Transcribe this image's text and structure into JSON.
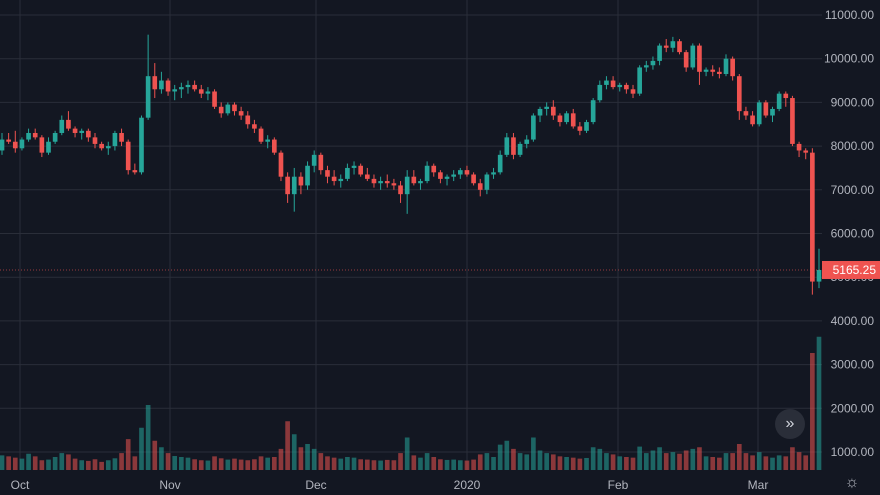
{
  "colors": {
    "background": "#131722",
    "grid": "#2a2e39",
    "up": "#26a69a",
    "down": "#ef5350",
    "label_bg": "#ef5350",
    "text": "#b2b5be"
  },
  "icons": {
    "scroll_button": "double-chevron-right-icon",
    "settings": "gear-icon"
  },
  "controls": {
    "scroll_glyph": "»",
    "settings_glyph": "☼"
  },
  "chart_data": {
    "type": "candlestick",
    "x_tick_labels": [
      "Oct",
      "Nov",
      "Dec",
      "2020",
      "Feb",
      "Mar"
    ],
    "y_tick_labels": [
      "11000.00",
      "10000.00",
      "9000.00",
      "8000.00",
      "7000.00",
      "6000.00",
      "5000.00",
      "4000.00",
      "3000.00",
      "2000.00",
      "1000.00"
    ],
    "ylim": [
      0,
      11300
    ],
    "last_price": 5165.25,
    "last_price_label": "5165.25",
    "grid": true,
    "candles": [
      [
        7900,
        8300,
        7800,
        8150,
        450
      ],
      [
        8150,
        8300,
        8050,
        8100,
        420
      ],
      [
        8100,
        8350,
        7850,
        7950,
        380
      ],
      [
        7950,
        8200,
        7900,
        8150,
        350
      ],
      [
        8150,
        8400,
        8100,
        8300,
        500
      ],
      [
        8300,
        8400,
        8150,
        8200,
        420
      ],
      [
        8200,
        8250,
        7750,
        7850,
        300
      ],
      [
        7850,
        8200,
        7800,
        8100,
        320
      ],
      [
        8100,
        8350,
        8050,
        8300,
        400
      ],
      [
        8300,
        8700,
        8250,
        8600,
        520
      ],
      [
        8600,
        8800,
        8350,
        8400,
        480
      ],
      [
        8400,
        8450,
        8200,
        8300,
        350
      ],
      [
        8300,
        8400,
        8150,
        8350,
        300
      ],
      [
        8350,
        8400,
        8100,
        8200,
        280
      ],
      [
        8200,
        8300,
        7950,
        8050,
        330
      ],
      [
        8050,
        8100,
        7900,
        7950,
        250
      ],
      [
        7950,
        8100,
        7800,
        8000,
        300
      ],
      [
        8000,
        8350,
        7900,
        8300,
        360
      ],
      [
        8300,
        8400,
        8000,
        8100,
        520
      ],
      [
        8100,
        8150,
        7350,
        7450,
        950
      ],
      [
        7450,
        7600,
        7350,
        7400,
        420
      ],
      [
        7400,
        8700,
        7350,
        8650,
        1300
      ],
      [
        8650,
        10550,
        8600,
        9600,
        2000
      ],
      [
        9600,
        9900,
        9100,
        9300,
        900
      ],
      [
        9300,
        9700,
        9200,
        9500,
        700
      ],
      [
        9500,
        9550,
        9150,
        9250,
        520
      ],
      [
        9250,
        9400,
        9050,
        9300,
        430
      ],
      [
        9300,
        9450,
        9100,
        9350,
        400
      ],
      [
        9350,
        9500,
        9200,
        9400,
        380
      ],
      [
        9400,
        9500,
        9250,
        9300,
        330
      ],
      [
        9300,
        9400,
        9100,
        9200,
        300
      ],
      [
        9200,
        9350,
        9050,
        9250,
        290
      ],
      [
        9250,
        9300,
        8850,
        8900,
        420
      ],
      [
        8900,
        9000,
        8650,
        8750,
        360
      ],
      [
        8750,
        9000,
        8700,
        8950,
        320
      ],
      [
        8950,
        9000,
        8700,
        8800,
        350
      ],
      [
        8800,
        8900,
        8600,
        8700,
        320
      ],
      [
        8700,
        8800,
        8400,
        8500,
        300
      ],
      [
        8500,
        8600,
        8300,
        8400,
        330
      ],
      [
        8400,
        8450,
        8050,
        8100,
        420
      ],
      [
        8100,
        8250,
        7950,
        8150,
        380
      ],
      [
        8150,
        8200,
        7800,
        7850,
        400
      ],
      [
        7850,
        7900,
        7200,
        7300,
        650
      ],
      [
        7300,
        7400,
        6700,
        6900,
        1500
      ],
      [
        6900,
        7500,
        6500,
        7300,
        1100
      ],
      [
        7300,
        7400,
        6900,
        7100,
        700
      ],
      [
        7100,
        7650,
        7000,
        7550,
        800
      ],
      [
        7550,
        7900,
        7400,
        7800,
        650
      ],
      [
        7800,
        7850,
        7350,
        7450,
        520
      ],
      [
        7450,
        7550,
        7150,
        7300,
        420
      ],
      [
        7300,
        7450,
        7100,
        7200,
        380
      ],
      [
        7200,
        7350,
        7050,
        7250,
        350
      ],
      [
        7250,
        7600,
        7200,
        7500,
        400
      ],
      [
        7500,
        7650,
        7350,
        7550,
        380
      ],
      [
        7550,
        7600,
        7300,
        7350,
        330
      ],
      [
        7350,
        7500,
        7200,
        7250,
        320
      ],
      [
        7250,
        7350,
        7050,
        7150,
        300
      ],
      [
        7150,
        7300,
        7000,
        7200,
        290
      ],
      [
        7200,
        7350,
        7050,
        7150,
        310
      ],
      [
        7150,
        7250,
        7000,
        7100,
        300
      ],
      [
        7100,
        7200,
        6700,
        6900,
        520
      ],
      [
        6900,
        7450,
        6450,
        7300,
        1000
      ],
      [
        7300,
        7450,
        7100,
        7150,
        450
      ],
      [
        7150,
        7250,
        7000,
        7200,
        380
      ],
      [
        7200,
        7650,
        7150,
        7550,
        520
      ],
      [
        7550,
        7600,
        7300,
        7400,
        400
      ],
      [
        7400,
        7450,
        7150,
        7250,
        330
      ],
      [
        7250,
        7350,
        7100,
        7300,
        310
      ],
      [
        7300,
        7450,
        7200,
        7350,
        320
      ],
      [
        7350,
        7500,
        7250,
        7450,
        300
      ],
      [
        7450,
        7550,
        7300,
        7350,
        290
      ],
      [
        7350,
        7400,
        7100,
        7150,
        320
      ],
      [
        7150,
        7250,
        6850,
        7000,
        480
      ],
      [
        7000,
        7400,
        6900,
        7350,
        520
      ],
      [
        7350,
        7500,
        7250,
        7400,
        400
      ],
      [
        7400,
        7900,
        7350,
        7800,
        780
      ],
      [
        7800,
        8300,
        7750,
        8200,
        900
      ],
      [
        8200,
        8300,
        7700,
        7800,
        650
      ],
      [
        7800,
        8100,
        7750,
        8050,
        520
      ],
      [
        8050,
        8250,
        7950,
        8150,
        480
      ],
      [
        8150,
        8750,
        8100,
        8700,
        1000
      ],
      [
        8700,
        8900,
        8550,
        8850,
        600
      ],
      [
        8850,
        9000,
        8700,
        8900,
        520
      ],
      [
        8900,
        9050,
        8600,
        8700,
        480
      ],
      [
        8700,
        8750,
        8450,
        8550,
        420
      ],
      [
        8550,
        8800,
        8500,
        8750,
        400
      ],
      [
        8750,
        8850,
        8400,
        8450,
        380
      ],
      [
        8450,
        8550,
        8250,
        8350,
        350
      ],
      [
        8350,
        8600,
        8300,
        8550,
        370
      ],
      [
        8550,
        9100,
        8500,
        9050,
        700
      ],
      [
        9050,
        9500,
        9000,
        9400,
        650
      ],
      [
        9400,
        9600,
        9300,
        9500,
        520
      ],
      [
        9500,
        9600,
        9300,
        9350,
        480
      ],
      [
        9350,
        9450,
        9250,
        9400,
        420
      ],
      [
        9400,
        9450,
        9200,
        9300,
        400
      ],
      [
        9300,
        9400,
        9100,
        9200,
        380
      ],
      [
        9200,
        9850,
        9150,
        9800,
        720
      ],
      [
        9800,
        9950,
        9700,
        9850,
        520
      ],
      [
        9850,
        10050,
        9750,
        9950,
        600
      ],
      [
        9950,
        10350,
        9850,
        10300,
        700
      ],
      [
        10300,
        10450,
        10150,
        10250,
        520
      ],
      [
        10250,
        10500,
        10150,
        10400,
        550
      ],
      [
        10400,
        10450,
        10100,
        10150,
        500
      ],
      [
        10150,
        10200,
        9700,
        9800,
        600
      ],
      [
        9800,
        10350,
        9750,
        10300,
        650
      ],
      [
        10300,
        10350,
        9400,
        9700,
        700
      ],
      [
        9700,
        9800,
        9600,
        9750,
        420
      ],
      [
        9750,
        9850,
        9600,
        9700,
        400
      ],
      [
        9700,
        9800,
        9550,
        9650,
        380
      ],
      [
        9650,
        10100,
        9600,
        10000,
        520
      ],
      [
        10000,
        10050,
        9500,
        9600,
        520
      ],
      [
        9600,
        9650,
        8600,
        8800,
        800
      ],
      [
        8800,
        8900,
        8600,
        8700,
        520
      ],
      [
        8700,
        8800,
        8450,
        8500,
        450
      ],
      [
        8500,
        9050,
        8450,
        9000,
        550
      ],
      [
        9000,
        9050,
        8650,
        8700,
        420
      ],
      [
        8700,
        8900,
        8550,
        8850,
        380
      ],
      [
        8850,
        9250,
        8800,
        9200,
        450
      ],
      [
        9200,
        9250,
        8900,
        9100,
        420
      ],
      [
        9100,
        9150,
        8000,
        8050,
        700
      ],
      [
        8050,
        8100,
        7750,
        7900,
        550
      ],
      [
        7900,
        7950,
        7700,
        7850,
        450
      ],
      [
        7850,
        7950,
        4600,
        4900,
        3600
      ],
      [
        4900,
        5650,
        4750,
        5165.25,
        4100
      ]
    ]
  }
}
